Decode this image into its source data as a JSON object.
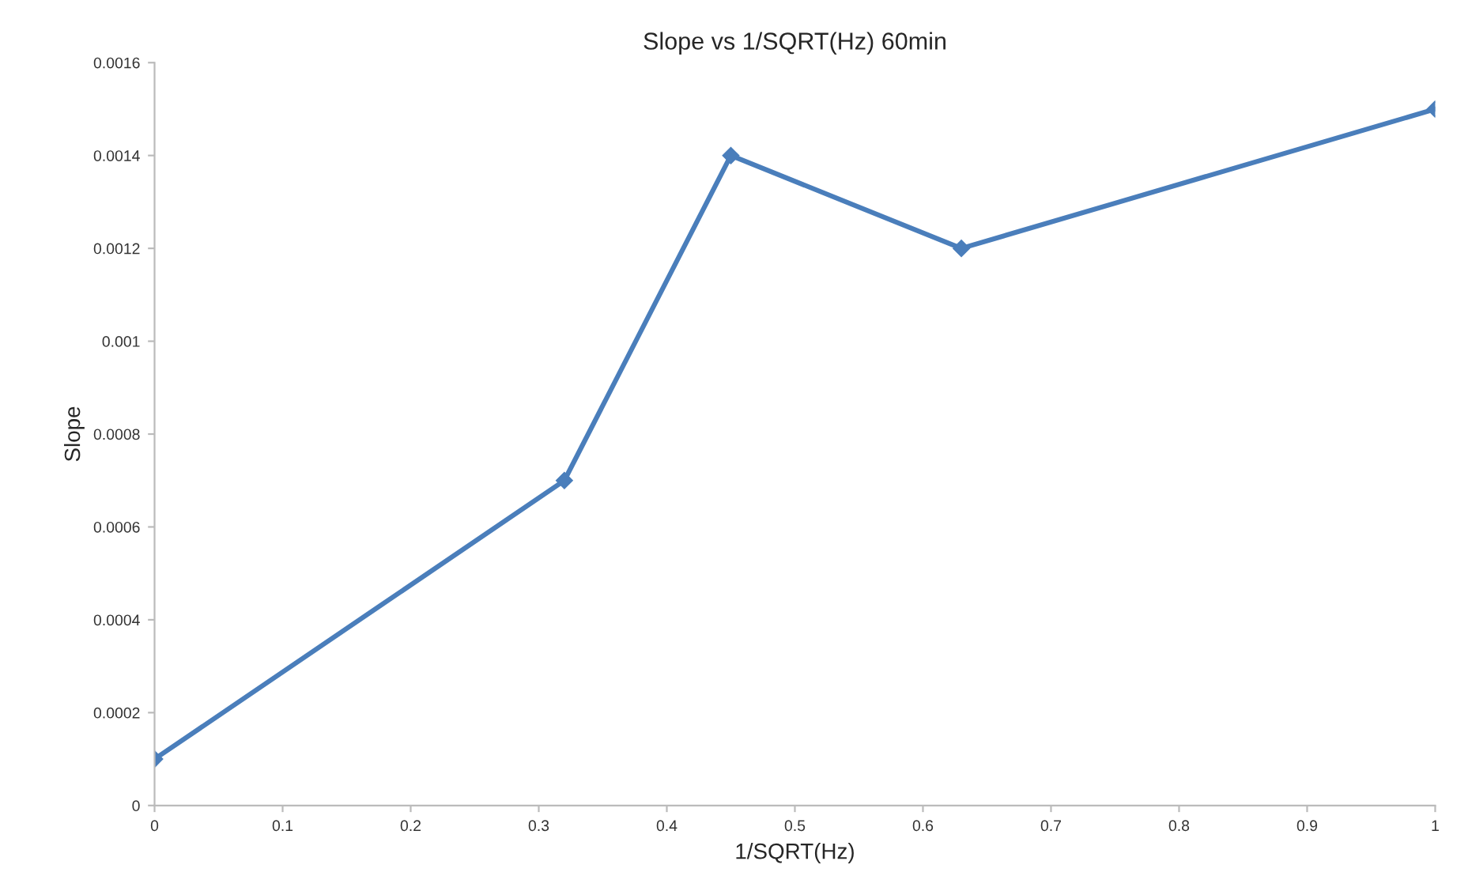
{
  "chart_data": {
    "type": "line",
    "title": "Slope vs 1/SQRT(Hz) 60min",
    "xlabel": "1/SQRT(Hz)",
    "ylabel": "Slope",
    "x": [
      0,
      0.32,
      0.45,
      0.63,
      1
    ],
    "series": [
      {
        "color": "#4a7ebb",
        "values": [
          0.0001,
          0.0007,
          0.0014,
          0.0012,
          0.0015
        ]
      }
    ],
    "xlim": [
      0,
      1
    ],
    "xticks": [
      0,
      0.1,
      0.2,
      0.3,
      0.4,
      0.5,
      0.6,
      0.7,
      0.8,
      0.9,
      1
    ],
    "ylim": [
      0,
      0.0016
    ],
    "yticks": [
      0,
      0.0002,
      0.0004,
      0.0006,
      0.0008,
      0.001,
      0.0012,
      0.0014,
      0.0016
    ],
    "grid": false,
    "legend": false,
    "marker": "diamond",
    "line_style": "solid"
  }
}
